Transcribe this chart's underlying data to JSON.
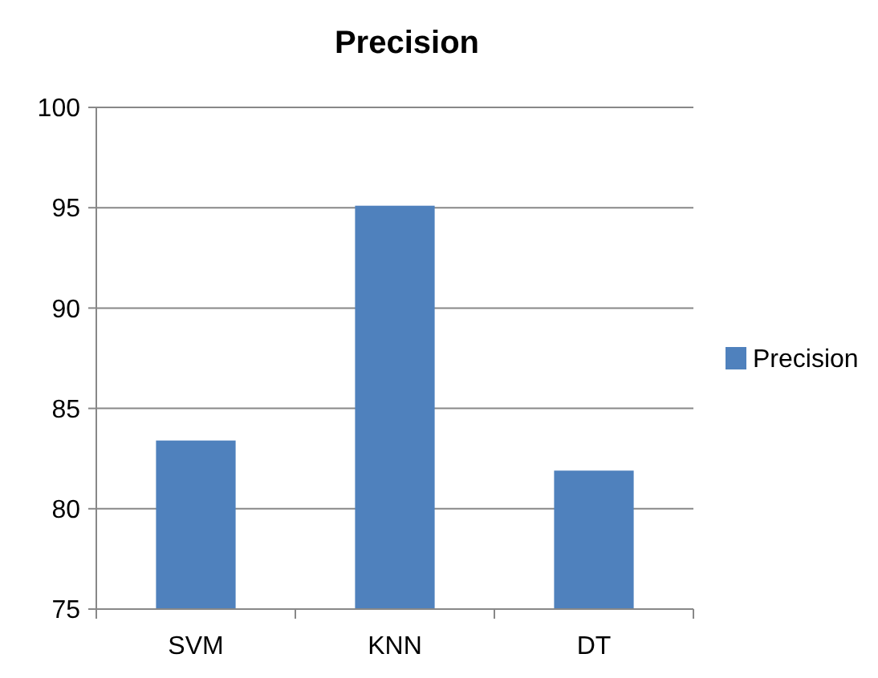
{
  "chart_data": {
    "type": "bar",
    "title": "Precision",
    "categories": [
      "SVM",
      "KNN",
      "DT"
    ],
    "series": [
      {
        "name": "Precision",
        "color": "#4f81bd",
        "values": [
          83.4,
          95.1,
          81.9
        ]
      }
    ],
    "ylim": [
      75,
      100
    ],
    "yticks": [
      75,
      80,
      85,
      90,
      95,
      100
    ],
    "grid": "y",
    "legend": "right"
  }
}
